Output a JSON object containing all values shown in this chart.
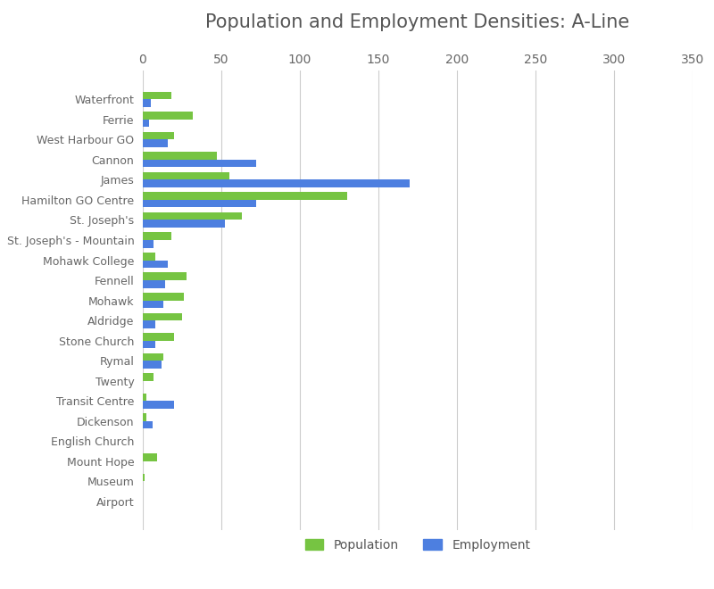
{
  "title": "Population and Employment Densities: A-Line",
  "categories": [
    "Waterfront",
    "Ferrie",
    "West Harbour GO",
    "Cannon",
    "James",
    "Hamilton GO Centre",
    "St. Joseph's",
    "St. Joseph's - Mountain",
    "Mohawk College",
    "Fennell",
    "Mohawk",
    "Aldridge",
    "Stone Church",
    "Rymal",
    "Twenty",
    "Transit Centre",
    "Dickenson",
    "English Church",
    "Mount Hope",
    "Museum",
    "Airport"
  ],
  "population": [
    18,
    32,
    20,
    47,
    55,
    130,
    63,
    18,
    8,
    28,
    26,
    25,
    20,
    13,
    7,
    2,
    2,
    0,
    9,
    1,
    0
  ],
  "employment": [
    5,
    4,
    16,
    72,
    170,
    72,
    52,
    7,
    16,
    14,
    13,
    8,
    8,
    12,
    0,
    20,
    6,
    0,
    0,
    0,
    0
  ],
  "pop_color": "#76c442",
  "emp_color": "#4d7fe0",
  "xlim": [
    0,
    350
  ],
  "xticks": [
    0,
    50,
    100,
    150,
    200,
    250,
    300,
    350
  ],
  "background_color": "#ffffff",
  "title_fontsize": 15,
  "legend_labels": [
    "Population",
    "Employment"
  ],
  "bar_height": 0.38
}
